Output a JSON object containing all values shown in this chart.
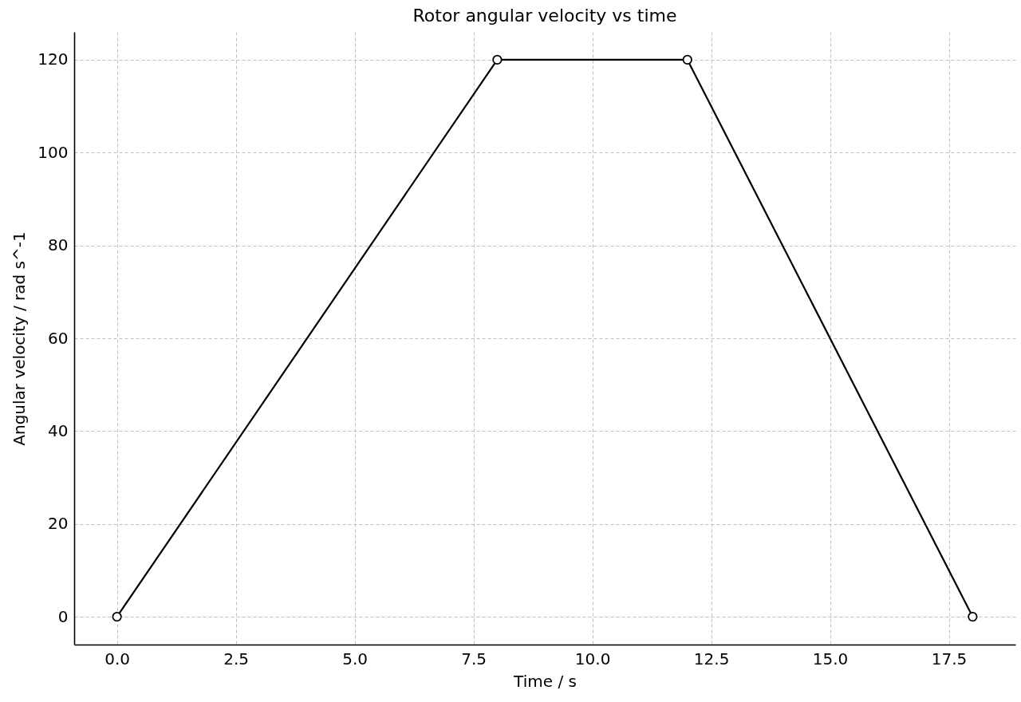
{
  "chart_data": {
    "type": "line",
    "title": "Rotor angular velocity vs time",
    "xlabel": "Time / s",
    "ylabel": "Angular velocity / rad s^-1",
    "x": [
      0,
      8,
      12,
      18
    ],
    "series": [
      {
        "color": "#000000",
        "values": [
          0,
          120,
          120,
          0
        ]
      }
    ],
    "xlim": [
      -0.9,
      18.9
    ],
    "ylim": [
      -6,
      126
    ],
    "xticks": [
      {
        "value": 0,
        "label": "0.0"
      },
      {
        "value": 2.5,
        "label": "2.5"
      },
      {
        "value": 5,
        "label": "5.0"
      },
      {
        "value": 7.5,
        "label": "7.5"
      },
      {
        "value": 10,
        "label": "10.0"
      },
      {
        "value": 12.5,
        "label": "12.5"
      },
      {
        "value": 15,
        "label": "15.0"
      },
      {
        "value": 17.5,
        "label": "17.5"
      }
    ],
    "yticks": [
      0,
      20,
      40,
      60,
      80,
      100,
      120
    ],
    "grid": true,
    "marker": "circle",
    "line_style": "solid"
  }
}
